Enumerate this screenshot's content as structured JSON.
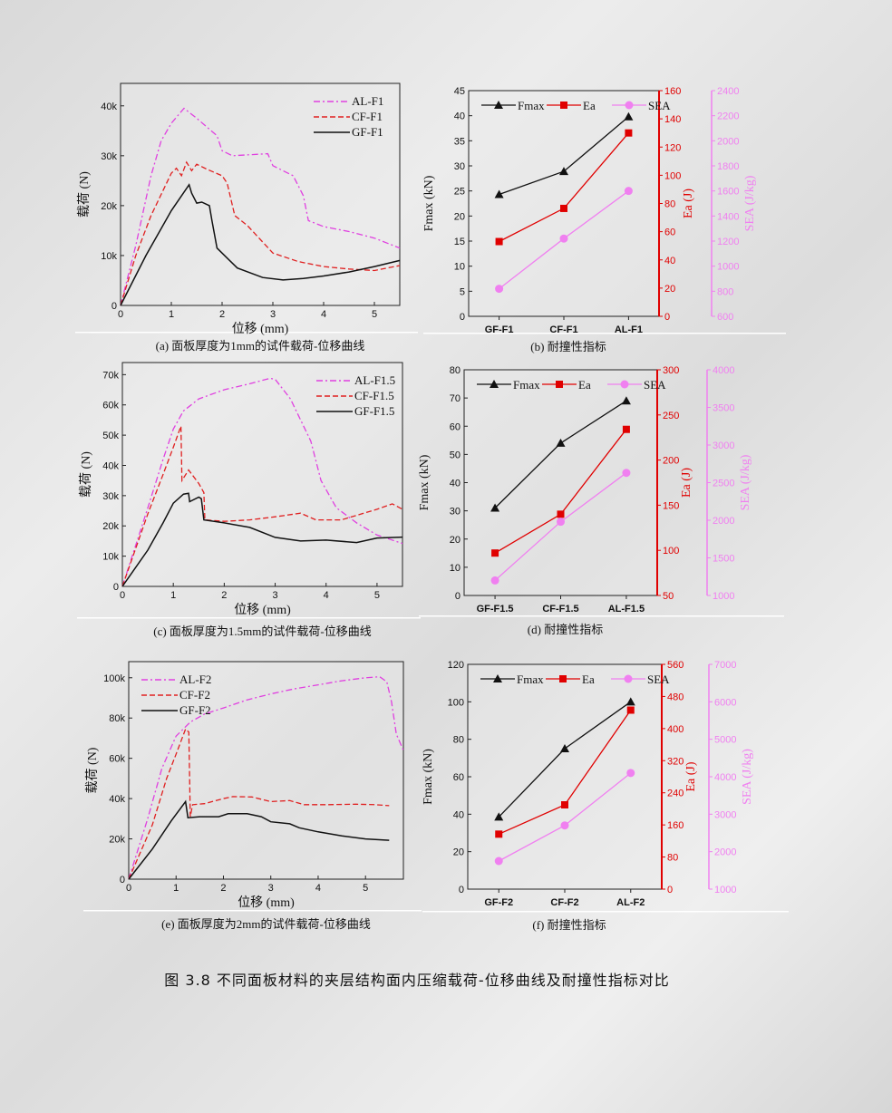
{
  "figure_caption": "图 3.8  不同面板材料的夹层结构面内压缩载荷-位移曲线及耐撞性指标对比",
  "colors": {
    "AL": "#e040e0",
    "CF": "#e02020",
    "GF": "#111111",
    "Fmax": "#111111",
    "Ea": "#e00000",
    "SEA": "#f080f0"
  },
  "chart_data": [
    {
      "id": "a",
      "type": "line",
      "caption": "(a) 面板厚度为1mm的试件载荷-位移曲线",
      "xlabel": "位移 (mm)",
      "ylabel": "载荷 (N)",
      "xlim": [
        0,
        5.5
      ],
      "ylim": [
        0,
        44500
      ],
      "xticks": [
        "0",
        "1",
        "2",
        "3",
        "4",
        "5"
      ],
      "yticks": [
        "0",
        "10k",
        "20k",
        "30k",
        "40k"
      ],
      "legend": "top-right",
      "series": [
        {
          "name": "AL-F1",
          "style": "dashdot",
          "points": [
            [
              0,
              0
            ],
            [
              0.3,
              12000
            ],
            [
              0.6,
              26000
            ],
            [
              0.8,
              33000
            ],
            [
              1.0,
              36500
            ],
            [
              1.25,
              39500
            ],
            [
              1.5,
              37500
            ],
            [
              1.9,
              34000
            ],
            [
              2.0,
              31000
            ],
            [
              2.2,
              30000
            ],
            [
              2.9,
              30400
            ],
            [
              3.0,
              28000
            ],
            [
              3.4,
              26000
            ],
            [
              3.6,
              22000
            ],
            [
              3.7,
              17000
            ],
            [
              4.0,
              15800
            ],
            [
              4.5,
              14800
            ],
            [
              5.0,
              13500
            ],
            [
              5.5,
              11500
            ]
          ]
        },
        {
          "name": "CF-F1",
          "style": "dash",
          "points": [
            [
              0,
              0
            ],
            [
              0.3,
              10000
            ],
            [
              0.6,
              18000
            ],
            [
              1.0,
              26500
            ],
            [
              1.1,
              27500
            ],
            [
              1.2,
              26000
            ],
            [
              1.3,
              28700
            ],
            [
              1.4,
              27000
            ],
            [
              1.5,
              28300
            ],
            [
              1.7,
              27300
            ],
            [
              2.0,
              26000
            ],
            [
              2.1,
              24500
            ],
            [
              2.25,
              18000
            ],
            [
              2.5,
              16000
            ],
            [
              3.0,
              10500
            ],
            [
              3.5,
              8800
            ],
            [
              4.0,
              7800
            ],
            [
              4.5,
              7300
            ],
            [
              5.0,
              7000
            ],
            [
              5.5,
              8000
            ]
          ]
        },
        {
          "name": "GF-F1",
          "style": "solid",
          "points": [
            [
              0,
              0
            ],
            [
              0.5,
              10000
            ],
            [
              1.0,
              19000
            ],
            [
              1.35,
              24200
            ],
            [
              1.4,
              22500
            ],
            [
              1.5,
              20500
            ],
            [
              1.6,
              20700
            ],
            [
              1.75,
              20000
            ],
            [
              1.8,
              17000
            ],
            [
              1.9,
              11500
            ],
            [
              2.3,
              7500
            ],
            [
              2.8,
              5600
            ],
            [
              3.2,
              5100
            ],
            [
              3.6,
              5400
            ],
            [
              4.0,
              5900
            ],
            [
              4.5,
              6700
            ],
            [
              5.0,
              7800
            ],
            [
              5.5,
              9000
            ]
          ]
        }
      ]
    },
    {
      "id": "c",
      "type": "line",
      "caption": "(c) 面板厚度为1.5mm的试件载荷-位移曲线",
      "xlabel": "位移 (mm)",
      "ylabel": "载荷 (N)",
      "xlim": [
        0,
        5.5
      ],
      "ylim": [
        0,
        74000
      ],
      "xticks": [
        "0",
        "1",
        "2",
        "3",
        "4",
        "5"
      ],
      "yticks": [
        "0",
        "10k",
        "20k",
        "30k",
        "40k",
        "50k",
        "60k",
        "70k"
      ],
      "legend": "top-right",
      "series": [
        {
          "name": "AL-F1.5",
          "style": "dashdot",
          "points": [
            [
              0,
              0
            ],
            [
              0.5,
              26000
            ],
            [
              0.8,
              42000
            ],
            [
              1.0,
              52000
            ],
            [
              1.2,
              58000
            ],
            [
              1.5,
              62000
            ],
            [
              2.0,
              65000
            ],
            [
              2.5,
              67000
            ],
            [
              2.9,
              68800
            ],
            [
              3.0,
              68500
            ],
            [
              3.3,
              62000
            ],
            [
              3.7,
              48000
            ],
            [
              3.9,
              35000
            ],
            [
              4.2,
              26000
            ],
            [
              4.6,
              21000
            ],
            [
              5.0,
              17000
            ],
            [
              5.5,
              14200
            ]
          ]
        },
        {
          "name": "CF-F1.5",
          "style": "dash",
          "points": [
            [
              0,
              0
            ],
            [
              0.5,
              24000
            ],
            [
              0.8,
              37000
            ],
            [
              1.0,
              46000
            ],
            [
              1.15,
              53000
            ],
            [
              1.17,
              35000
            ],
            [
              1.3,
              38500
            ],
            [
              1.5,
              34000
            ],
            [
              1.6,
              31000
            ],
            [
              1.62,
              22000
            ],
            [
              2.0,
              21500
            ],
            [
              2.5,
              22000
            ],
            [
              3.0,
              23000
            ],
            [
              3.5,
              24200
            ],
            [
              3.8,
              22000
            ],
            [
              4.3,
              22000
            ],
            [
              4.7,
              24000
            ],
            [
              5.0,
              25500
            ],
            [
              5.3,
              27300
            ],
            [
              5.5,
              25500
            ]
          ]
        },
        {
          "name": "GF-F1.5",
          "style": "solid",
          "points": [
            [
              0,
              0
            ],
            [
              0.5,
              12000
            ],
            [
              0.8,
              21000
            ],
            [
              1.0,
              27500
            ],
            [
              1.2,
              30500
            ],
            [
              1.3,
              30800
            ],
            [
              1.32,
              28000
            ],
            [
              1.5,
              29500
            ],
            [
              1.55,
              29000
            ],
            [
              1.6,
              22000
            ],
            [
              2.0,
              21000
            ],
            [
              2.5,
              19500
            ],
            [
              3.0,
              16200
            ],
            [
              3.5,
              15000
            ],
            [
              4.0,
              15300
            ],
            [
              4.6,
              14500
            ],
            [
              5.0,
              16000
            ],
            [
              5.5,
              16300
            ]
          ]
        }
      ]
    },
    {
      "id": "e",
      "type": "line",
      "caption": "(e) 面板厚度为2mm的试件载荷-位移曲线",
      "xlabel": "位移 (mm)",
      "ylabel": "载荷 (N)",
      "xlim": [
        0,
        5.8
      ],
      "ylim": [
        0,
        108000
      ],
      "xticks": [
        "0",
        "1",
        "2",
        "3",
        "4",
        "5"
      ],
      "yticks": [
        "0",
        "20k",
        "40k",
        "60k",
        "80k",
        "100k"
      ],
      "legend": "top-left",
      "series": [
        {
          "name": "AL-F2",
          "style": "dashdot",
          "points": [
            [
              0,
              0
            ],
            [
              0.4,
              30000
            ],
            [
              0.7,
              55000
            ],
            [
              1.0,
              71000
            ],
            [
              1.3,
              78000
            ],
            [
              1.6,
              82000
            ],
            [
              2.0,
              85000
            ],
            [
              2.5,
              89000
            ],
            [
              3.0,
              92000
            ],
            [
              3.5,
              94500
            ],
            [
              4.0,
              96500
            ],
            [
              4.5,
              98500
            ],
            [
              5.0,
              100000
            ],
            [
              5.3,
              100500
            ],
            [
              5.45,
              98000
            ],
            [
              5.55,
              88000
            ],
            [
              5.65,
              72000
            ],
            [
              5.8,
              64000
            ]
          ]
        },
        {
          "name": "CF-F2",
          "style": "dash",
          "points": [
            [
              0,
              0
            ],
            [
              0.5,
              27000
            ],
            [
              0.8,
              50000
            ],
            [
              1.0,
              62000
            ],
            [
              1.2,
              74500
            ],
            [
              1.27,
              73000
            ],
            [
              1.3,
              31000
            ],
            [
              1.35,
              37000
            ],
            [
              1.6,
              37500
            ],
            [
              2.0,
              40000
            ],
            [
              2.2,
              41000
            ],
            [
              2.6,
              40800
            ],
            [
              3.0,
              38500
            ],
            [
              3.4,
              39000
            ],
            [
              3.7,
              37000
            ],
            [
              4.2,
              37000
            ],
            [
              4.8,
              37200
            ],
            [
              5.2,
              37000
            ],
            [
              5.5,
              36500
            ]
          ]
        },
        {
          "name": "GF-F2",
          "style": "solid",
          "points": [
            [
              0,
              0
            ],
            [
              0.5,
              15000
            ],
            [
              0.9,
              29000
            ],
            [
              1.2,
              38500
            ],
            [
              1.25,
              30500
            ],
            [
              1.5,
              31000
            ],
            [
              1.9,
              31000
            ],
            [
              2.1,
              32500
            ],
            [
              2.5,
              32500
            ],
            [
              2.8,
              31000
            ],
            [
              3.0,
              28500
            ],
            [
              3.4,
              27500
            ],
            [
              3.6,
              25500
            ],
            [
              4.0,
              23500
            ],
            [
              4.5,
              21500
            ],
            [
              5.0,
              20000
            ],
            [
              5.5,
              19300
            ]
          ]
        }
      ]
    },
    {
      "id": "b",
      "type": "line",
      "caption": "(b) 耐撞性指标",
      "categories": [
        "GF-F1",
        "CF-F1",
        "AL-F1"
      ],
      "legend": "top",
      "axes": [
        {
          "label": "Fmax (kN)",
          "ylim": [
            0,
            45
          ],
          "ticks": [
            "0",
            "5",
            "10",
            "15",
            "20",
            "25",
            "30",
            "35",
            "40",
            "45"
          ]
        },
        {
          "label": "Ea (J)",
          "ylim": [
            0,
            160
          ],
          "ticks": [
            "0",
            "20",
            "40",
            "60",
            "80",
            "100",
            "120",
            "140",
            "160"
          ]
        },
        {
          "label": "SEA (J/kg)",
          "ylim": [
            600,
            2400
          ],
          "ticks": [
            "600",
            "800",
            "1000",
            "1200",
            "1400",
            "1600",
            "1800",
            "2000",
            "2200",
            "2400"
          ]
        }
      ],
      "series": [
        {
          "name": "Fmax",
          "values": [
            24.3,
            28.9,
            39.8
          ]
        },
        {
          "name": "Ea",
          "values": [
            53,
            76.5,
            130
          ]
        },
        {
          "name": "SEA",
          "values": [
            820,
            1220,
            1600
          ]
        }
      ]
    },
    {
      "id": "d",
      "type": "line",
      "caption": "(d) 耐撞性指标",
      "categories": [
        "GF-F1.5",
        "CF-F1.5",
        "AL-F1.5"
      ],
      "legend": "top",
      "axes": [
        {
          "label": "Fmax (kN)",
          "ylim": [
            0,
            80
          ],
          "ticks": [
            "0",
            "10",
            "20",
            "30",
            "40",
            "50",
            "60",
            "70",
            "80"
          ]
        },
        {
          "label": "Ea (J)",
          "ylim": [
            50,
            300
          ],
          "ticks": [
            "50",
            "100",
            "150",
            "200",
            "250",
            "300"
          ]
        },
        {
          "label": "SEA (J/kg)",
          "ylim": [
            1000,
            4000
          ],
          "ticks": [
            "1000",
            "1500",
            "2000",
            "2500",
            "3000",
            "3500",
            "4000"
          ]
        }
      ],
      "series": [
        {
          "name": "Fmax",
          "values": [
            31,
            54,
            69
          ]
        },
        {
          "name": "Ea",
          "values": [
            97,
            140,
            234
          ]
        },
        {
          "name": "SEA",
          "values": [
            1200,
            1980,
            2630
          ]
        }
      ]
    },
    {
      "id": "f",
      "type": "line",
      "caption": "(f) 耐撞性指标",
      "categories": [
        "GF-F2",
        "CF-F2",
        "AL-F2"
      ],
      "legend": "top",
      "axes": [
        {
          "label": "Fmax (kN)",
          "ylim": [
            0,
            120
          ],
          "ticks": [
            "0",
            "20",
            "40",
            "60",
            "80",
            "100",
            "120"
          ]
        },
        {
          "label": "Ea (J)",
          "ylim": [
            0,
            560
          ],
          "ticks": [
            "0",
            "80",
            "160",
            "240",
            "320",
            "400",
            "480",
            "560"
          ]
        },
        {
          "label": "SEA (J/kg)",
          "ylim": [
            1000,
            7000
          ],
          "ticks": [
            "1000",
            "2000",
            "3000",
            "4000",
            "5000",
            "6000",
            "7000"
          ]
        }
      ],
      "series": [
        {
          "name": "Fmax",
          "values": [
            38.5,
            75,
            100
          ]
        },
        {
          "name": "Ea",
          "values": [
            137,
            210,
            446
          ]
        },
        {
          "name": "SEA",
          "values": [
            1750,
            2700,
            4100
          ]
        }
      ]
    }
  ]
}
